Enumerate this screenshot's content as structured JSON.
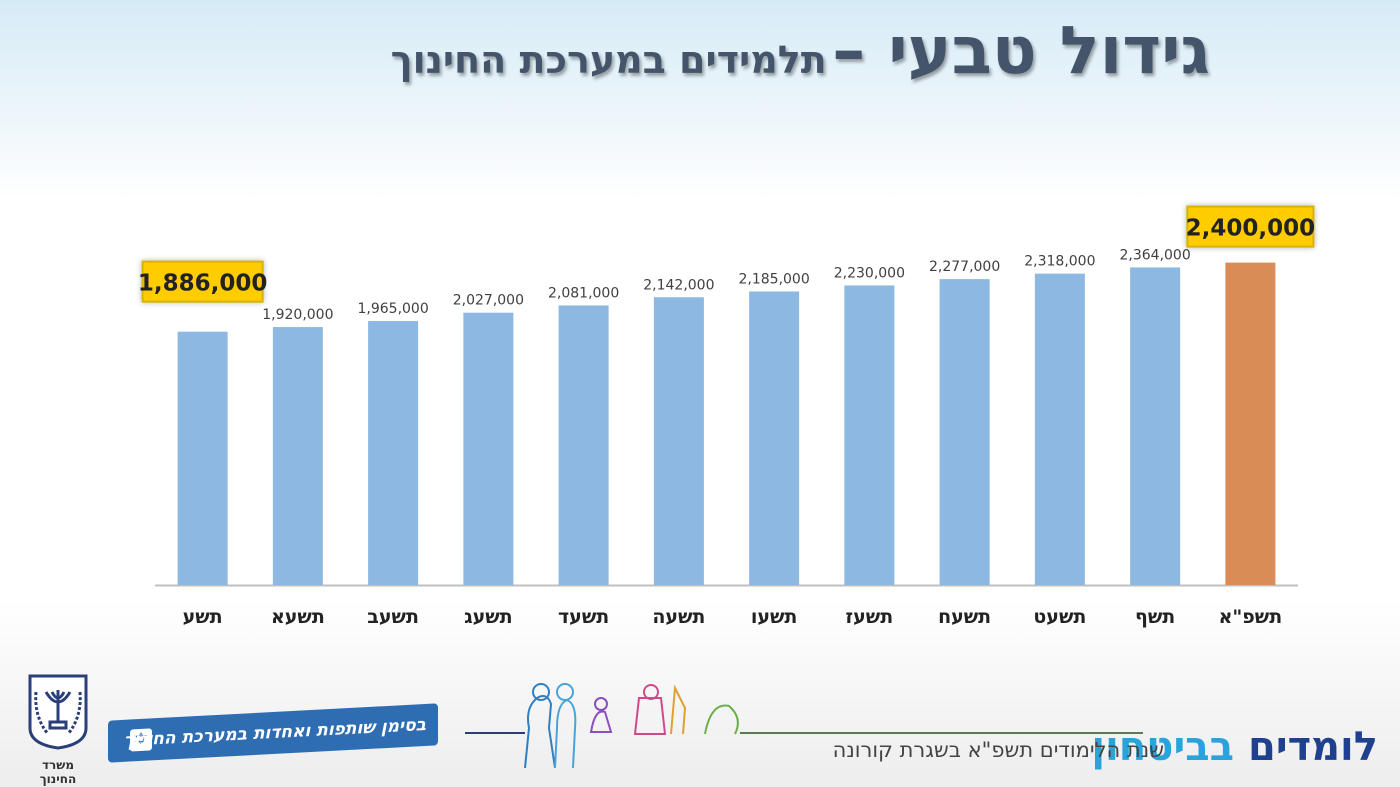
{
  "title": {
    "main": "גידול טבעי –",
    "sub": "תלמידים במערכת החינוך"
  },
  "chart_data": {
    "type": "bar",
    "categories": [
      "תשע",
      "תשעא",
      "תשעב",
      "תשעג",
      "תשעד",
      "תשעה",
      "תשעו",
      "תשעז",
      "תשעח",
      "תשעט",
      "תשף",
      "תשפ\"א"
    ],
    "values": [
      1886000,
      1920000,
      1965000,
      2027000,
      2081000,
      2142000,
      2185000,
      2230000,
      2277000,
      2318000,
      2364000,
      2400000
    ],
    "data_labels": [
      "1,886,000",
      "1,920,000",
      "1,965,000",
      "2,027,000",
      "2,081,000",
      "2,142,000",
      "2,185,000",
      "2,230,000",
      "2,277,000",
      "2,318,000",
      "2,364,000",
      "2,400,000"
    ],
    "highlighted_labels": [
      0,
      11
    ],
    "ylim": [
      0,
      3000000
    ],
    "grid": false,
    "colors": {
      "bar": "#8db8e2",
      "last_bar": "#d98c56",
      "highlight_box": "#ffcc00",
      "axis": "#bfbfbf"
    }
  },
  "footer": {
    "ministry": "משרד החינוך",
    "ribbon": "בסימן שותפות ואחדות במערכת החינוך",
    "brand_a": "לומדים",
    "brand_b": "בביטחון",
    "tagline": "שנת הלימודים תשפ\"א בשגרת קורונה"
  }
}
